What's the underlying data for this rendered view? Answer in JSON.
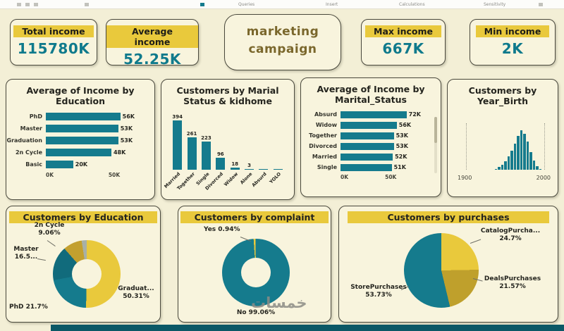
{
  "ribbon": {
    "items": [
      "Queries",
      "Insert",
      "Calculations",
      "Sensitivity"
    ]
  },
  "header": {
    "title_line1": "marketing",
    "title_line2": "campaign"
  },
  "kpis": {
    "total": {
      "label": "Total income",
      "value": "115780K"
    },
    "average": {
      "label": "Average income",
      "value": "52.25K"
    },
    "max": {
      "label": "Max income",
      "value": "667K"
    },
    "min": {
      "label": "Min income",
      "value": "2K"
    }
  },
  "watermark": "خمسات",
  "colors": {
    "teal": "#157B8D",
    "yellow": "#E9C93C",
    "gold": "#BFA02C",
    "background": "#F3EFD6",
    "card": "#F8F4DD",
    "kpi_value": "#0F7A8C",
    "border": "#4A493D"
  },
  "chart_data": [
    {
      "id": "income_by_education",
      "type": "bar",
      "orientation": "horizontal",
      "title": "Average of Income by Education",
      "categories": [
        "PhD",
        "Master",
        "Graduation",
        "2n Cycle",
        "Basic"
      ],
      "values": [
        56,
        53,
        53,
        48,
        20
      ],
      "unit": "K",
      "data_labels": [
        "56K",
        "53K",
        "53K",
        "48K",
        "20K"
      ],
      "x_ticks": [
        "0K",
        "50K"
      ],
      "xlim": [
        0,
        65
      ]
    },
    {
      "id": "customers_by_marital_kidhome",
      "type": "bar",
      "orientation": "vertical",
      "title": "Customers by Marial Status & kidhome",
      "categories": [
        "Married",
        "Together",
        "Single",
        "Divorced",
        "Widow",
        "Alone",
        "Absurd",
        "YOLO"
      ],
      "values": [
        394,
        261,
        223,
        96,
        18,
        3,
        2,
        2
      ],
      "data_labels": [
        "394",
        "261",
        "223",
        "96",
        "18",
        "3",
        "",
        ""
      ]
    },
    {
      "id": "income_by_marital_status",
      "type": "bar",
      "orientation": "horizontal",
      "title": "Average of Income by Marital_Status",
      "categories": [
        "Absurd",
        "Widow",
        "Together",
        "Divorced",
        "Married",
        "Single"
      ],
      "values": [
        72,
        56,
        53,
        53,
        52,
        51
      ],
      "unit": "K",
      "data_labels": [
        "72K",
        "56K",
        "53K",
        "53K",
        "52K",
        "51K"
      ],
      "x_ticks": [
        "0K",
        "50K"
      ],
      "xlim": [
        0,
        80
      ]
    },
    {
      "id": "customers_by_year_birth",
      "type": "histogram",
      "title": "Customers by Year_Birth",
      "x_ticks": [
        "1900",
        "2000"
      ],
      "x_range": [
        1900,
        2000
      ],
      "bins": [
        0,
        0,
        0,
        0,
        0,
        0,
        0,
        0,
        0,
        1,
        3,
        5,
        9,
        14,
        20,
        28,
        36,
        42,
        38,
        30,
        19,
        10,
        4,
        1,
        0
      ]
    },
    {
      "id": "customers_by_education",
      "type": "pie",
      "subtype": "donut",
      "title": "Customers by Education",
      "start_angle": 0,
      "segments": [
        {
          "label": "Graduation",
          "pct": 50.31,
          "color": "#E9C93C",
          "display": "Graduat... 50.31%"
        },
        {
          "label": "PhD",
          "pct": 21.7,
          "color": "#157B8D",
          "display": "PhD 21.7%"
        },
        {
          "label": "Master",
          "pct": 16.5,
          "color": "#116B7C",
          "display": "Master 16.5..."
        },
        {
          "label": "2n Cycle",
          "pct": 9.06,
          "color": "#C3A02F",
          "display": "2n Cycle 9.06%"
        },
        {
          "label": "Basic",
          "pct": 2.43,
          "color": "#A8B0A6",
          "display": ""
        }
      ]
    },
    {
      "id": "customers_by_complaint",
      "type": "pie",
      "subtype": "donut",
      "title": "Customers by complaint",
      "start_angle": -4,
      "segments": [
        {
          "label": "Yes",
          "pct": 0.94,
          "color": "#E9C93C",
          "display": "Yes 0.94%"
        },
        {
          "label": "No",
          "pct": 99.06,
          "color": "#157B8D",
          "display": "No 99.06%"
        }
      ]
    },
    {
      "id": "customers_by_purchases",
      "type": "pie",
      "title": "Customers by purchases",
      "start_angle": 0,
      "segments": [
        {
          "label": "CatalogPurchases",
          "pct": 24.7,
          "color": "#E9C93C",
          "display": "CatalogPurcha... 24.7%"
        },
        {
          "label": "DealsPurchases",
          "pct": 21.57,
          "color": "#BFA02C",
          "display": "DealsPurchases 21.57%"
        },
        {
          "label": "StorePurchases",
          "pct": 53.73,
          "color": "#157B8D",
          "display": "StorePurchases 53.73%"
        }
      ]
    }
  ]
}
